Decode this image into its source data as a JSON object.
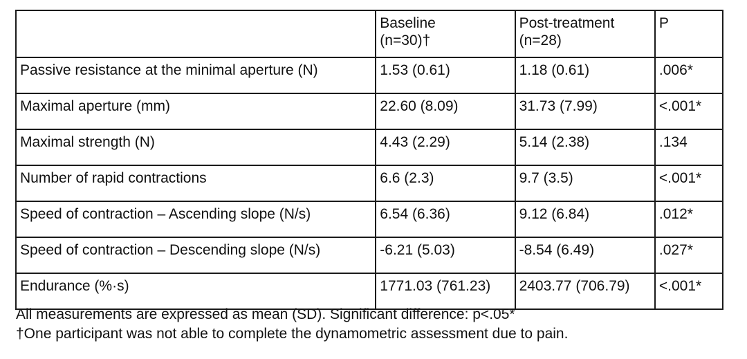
{
  "table": {
    "header": {
      "measure": "",
      "baseline_line1": "Baseline",
      "baseline_line2": "(n=30)†",
      "post_line1": "Post-treatment",
      "post_line2": "(n=28)",
      "p": "P"
    },
    "rows": [
      {
        "measure": "Passive resistance at the minimal aperture (N)",
        "baseline": "1.53 (0.61)",
        "post": "1.18 (0.61)",
        "p": ".006*"
      },
      {
        "measure": "Maximal aperture (mm)",
        "baseline": "22.60 (8.09)",
        "post": "31.73 (7.99)",
        "p": "<.001*"
      },
      {
        "measure": "Maximal strength (N)",
        "baseline": "4.43 (2.29)",
        "post": "5.14 (2.38)",
        "p": ".134"
      },
      {
        "measure": "Number of rapid contractions",
        "baseline": "6.6 (2.3)",
        "post": "9.7 (3.5)",
        "p": "<.001*"
      },
      {
        "measure": "Speed of contraction – Ascending slope (N/s)",
        "baseline": "6.54 (6.36)",
        "post": "9.12 (6.84)",
        "p": ".012*"
      },
      {
        "measure": "Speed of contraction – Descending slope (N/s)",
        "baseline": "-6.21 (5.03)",
        "post": "-8.54 (6.49)",
        "p": ".027*"
      },
      {
        "measure": "Endurance (%·s)",
        "baseline": "1771.03 (761.23)",
        "post": "2403.77 (706.79)",
        "p": "<.001*"
      }
    ]
  },
  "footnotes": {
    "line1": "All measurements are expressed as mean (SD). Significant difference: p<.05*",
    "line2": "†One participant was not able to complete the dynamometric assessment due to pain."
  }
}
